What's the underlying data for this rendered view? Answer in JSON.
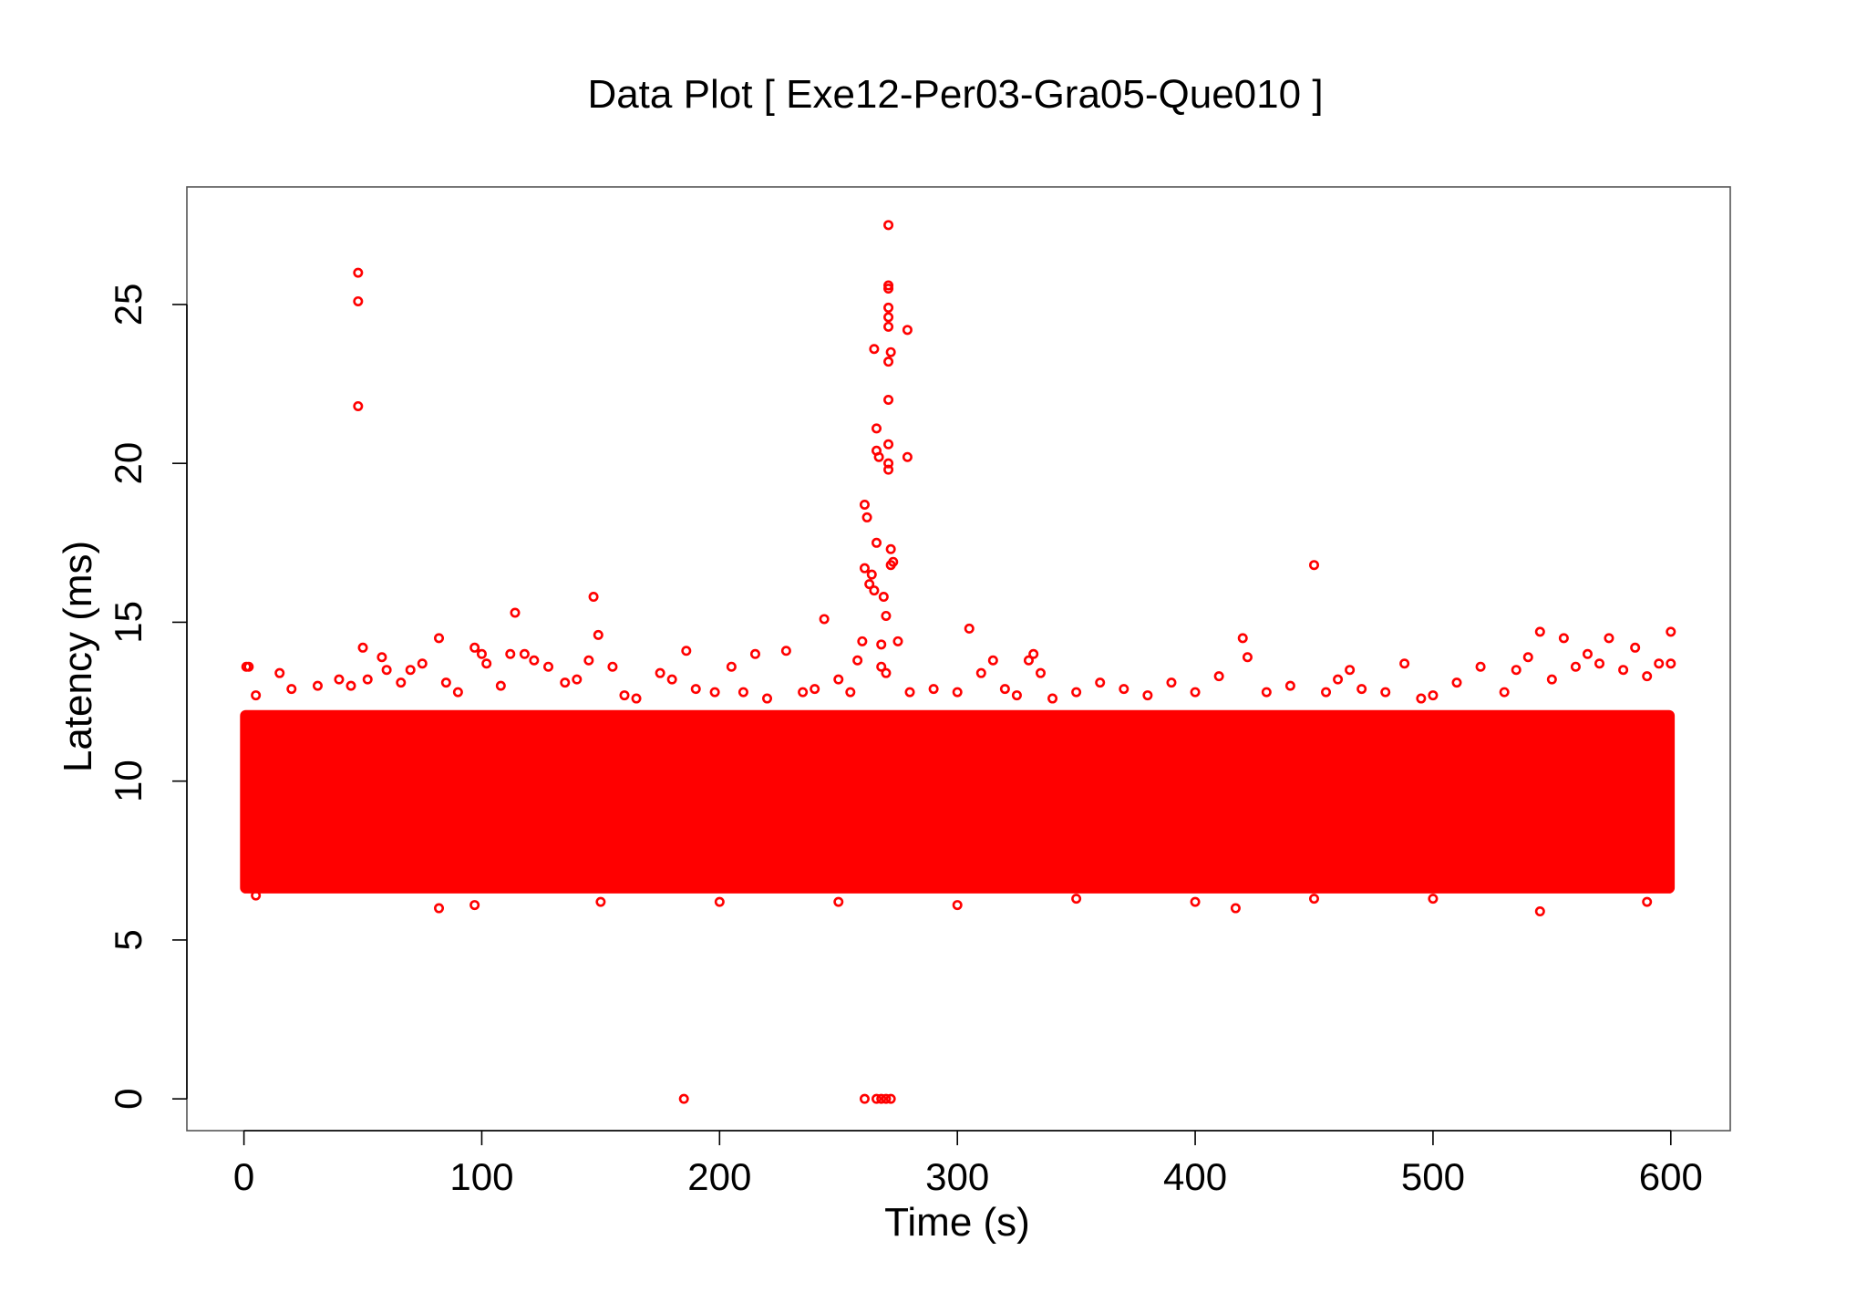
{
  "chart_data": {
    "type": "scatter",
    "title": "Data Plot [ Exe12-Per03-Gra05-Que010 ]",
    "xlabel": "Time (s)",
    "ylabel": "Latency (ms)",
    "xlim": [
      -24,
      625
    ],
    "ylim": [
      -1,
      28.7
    ],
    "x_ticks": [
      0,
      100,
      200,
      300,
      400,
      500,
      600
    ],
    "y_ticks": [
      0,
      5,
      10,
      15,
      20,
      25
    ],
    "grid": false,
    "legend": "none",
    "marker": "open-circle",
    "color": "#ff0000",
    "dense_band": {
      "x_range": [
        0,
        600
      ],
      "y_range": [
        6.5,
        12.2
      ]
    },
    "series": [
      {
        "points": [
          [
            1,
            13.6
          ],
          [
            2,
            13.6
          ],
          [
            5,
            12.7
          ],
          [
            15,
            13.4
          ],
          [
            20,
            12.9
          ],
          [
            31,
            13.0
          ],
          [
            40,
            13.2
          ],
          [
            45,
            13.0
          ],
          [
            48,
            26.0
          ],
          [
            48,
            25.1
          ],
          [
            48,
            21.8
          ],
          [
            50,
            14.2
          ],
          [
            52,
            13.2
          ],
          [
            58,
            13.9
          ],
          [
            60,
            13.5
          ],
          [
            66,
            13.1
          ],
          [
            70,
            13.5
          ],
          [
            75,
            13.7
          ],
          [
            82,
            14.5
          ],
          [
            85,
            13.1
          ],
          [
            90,
            12.8
          ],
          [
            97,
            14.2
          ],
          [
            100,
            14.0
          ],
          [
            102,
            13.7
          ],
          [
            108,
            13.0
          ],
          [
            112,
            14.0
          ],
          [
            114,
            15.3
          ],
          [
            118,
            14.0
          ],
          [
            122,
            13.8
          ],
          [
            128,
            13.6
          ],
          [
            135,
            13.1
          ],
          [
            140,
            13.2
          ],
          [
            145,
            13.8
          ],
          [
            147,
            15.8
          ],
          [
            149,
            14.6
          ],
          [
            155,
            13.6
          ],
          [
            160,
            12.7
          ],
          [
            165,
            12.6
          ],
          [
            175,
            13.4
          ],
          [
            180,
            13.2
          ],
          [
            186,
            14.1
          ],
          [
            190,
            12.9
          ],
          [
            198,
            12.8
          ],
          [
            205,
            13.6
          ],
          [
            210,
            12.8
          ],
          [
            215,
            14.0
          ],
          [
            220,
            12.6
          ],
          [
            228,
            14.1
          ],
          [
            235,
            12.8
          ],
          [
            240,
            12.9
          ],
          [
            244,
            15.1
          ],
          [
            250,
            13.2
          ],
          [
            255,
            12.8
          ],
          [
            258,
            13.8
          ],
          [
            260,
            14.4
          ],
          [
            261,
            16.7
          ],
          [
            261,
            18.7
          ],
          [
            262,
            18.3
          ],
          [
            263,
            16.2
          ],
          [
            264,
            16.5
          ],
          [
            265,
            16.0
          ],
          [
            266,
            17.5
          ],
          [
            266,
            20.4
          ],
          [
            266,
            21.1
          ],
          [
            267,
            20.2
          ],
          [
            265,
            23.6
          ],
          [
            268,
            13.6
          ],
          [
            268,
            14.3
          ],
          [
            269,
            15.8
          ],
          [
            270,
            15.2
          ],
          [
            270,
            13.4
          ],
          [
            271,
            27.5
          ],
          [
            271,
            25.6
          ],
          [
            271,
            25.5
          ],
          [
            271,
            24.9
          ],
          [
            271,
            24.6
          ],
          [
            271,
            24.3
          ],
          [
            271,
            23.2
          ],
          [
            271,
            22.0
          ],
          [
            272,
            23.5
          ],
          [
            271,
            20.6
          ],
          [
            271,
            20.0
          ],
          [
            271,
            19.8
          ],
          [
            272,
            17.3
          ],
          [
            272,
            16.8
          ],
          [
            273,
            16.9
          ],
          [
            275,
            14.4
          ],
          [
            279,
            24.2
          ],
          [
            279,
            20.2
          ],
          [
            280,
            12.8
          ],
          [
            290,
            12.9
          ],
          [
            300,
            12.8
          ],
          [
            305,
            14.8
          ],
          [
            310,
            13.4
          ],
          [
            315,
            13.8
          ],
          [
            320,
            12.9
          ],
          [
            325,
            12.7
          ],
          [
            330,
            13.8
          ],
          [
            332,
            14.0
          ],
          [
            335,
            13.4
          ],
          [
            340,
            12.6
          ],
          [
            350,
            12.8
          ],
          [
            360,
            13.1
          ],
          [
            370,
            12.9
          ],
          [
            380,
            12.7
          ],
          [
            390,
            13.1
          ],
          [
            400,
            12.8
          ],
          [
            410,
            13.3
          ],
          [
            420,
            14.5
          ],
          [
            422,
            13.9
          ],
          [
            430,
            12.8
          ],
          [
            440,
            13.0
          ],
          [
            450,
            16.8
          ],
          [
            455,
            12.8
          ],
          [
            460,
            13.2
          ],
          [
            465,
            13.5
          ],
          [
            470,
            12.9
          ],
          [
            480,
            12.8
          ],
          [
            488,
            13.7
          ],
          [
            495,
            12.6
          ],
          [
            500,
            12.7
          ],
          [
            510,
            13.1
          ],
          [
            520,
            13.6
          ],
          [
            530,
            12.8
          ],
          [
            535,
            13.5
          ],
          [
            540,
            13.9
          ],
          [
            545,
            14.7
          ],
          [
            550,
            13.2
          ],
          [
            555,
            14.5
          ],
          [
            560,
            13.6
          ],
          [
            565,
            14.0
          ],
          [
            570,
            13.7
          ],
          [
            574,
            14.5
          ],
          [
            580,
            13.5
          ],
          [
            585,
            14.2
          ],
          [
            590,
            13.3
          ],
          [
            595,
            13.7
          ],
          [
            600,
            14.7
          ],
          [
            600,
            13.7
          ],
          [
            5,
            6.4
          ],
          [
            82,
            6.0
          ],
          [
            97,
            6.1
          ],
          [
            150,
            6.2
          ],
          [
            200,
            6.2
          ],
          [
            250,
            6.2
          ],
          [
            300,
            6.1
          ],
          [
            350,
            6.3
          ],
          [
            400,
            6.2
          ],
          [
            417,
            6.0
          ],
          [
            450,
            6.3
          ],
          [
            500,
            6.3
          ],
          [
            545,
            5.9
          ],
          [
            590,
            6.2
          ],
          [
            185,
            0.0
          ],
          [
            261,
            0.0
          ],
          [
            266,
            0.0
          ],
          [
            268,
            0.0
          ],
          [
            270,
            0.0
          ],
          [
            272,
            0.0
          ]
        ]
      }
    ]
  }
}
